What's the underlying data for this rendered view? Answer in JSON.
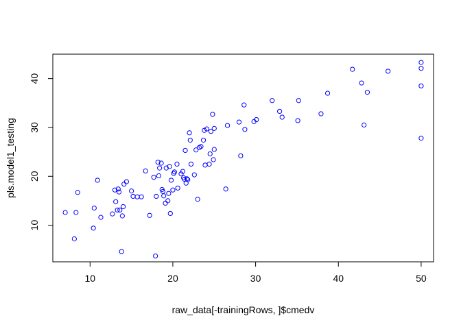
{
  "chart_data": {
    "type": "scatter",
    "title": "",
    "xlabel": "raw_data[-trainingRows, ]$cmedv",
    "ylabel": "pls.model1_testing",
    "xlim": [
      5.5,
      51.5
    ],
    "ylim": [
      2.5,
      45
    ],
    "xticks": [
      10,
      20,
      30,
      40,
      50
    ],
    "yticks": [
      10,
      20,
      30,
      40
    ],
    "point_color": "#0000ff",
    "marker": "open-circle",
    "grid": false,
    "legend": "none",
    "points": [
      [
        7.0,
        12.6
      ],
      [
        8.1,
        7.2
      ],
      [
        8.3,
        12.6
      ],
      [
        8.5,
        16.7
      ],
      [
        10.4,
        9.4
      ],
      [
        10.5,
        13.5
      ],
      [
        10.9,
        19.2
      ],
      [
        11.3,
        11.6
      ],
      [
        12.7,
        12.3
      ],
      [
        13.0,
        17.2
      ],
      [
        13.1,
        14.8
      ],
      [
        13.3,
        13.1
      ],
      [
        13.4,
        17.4
      ],
      [
        13.5,
        16.8
      ],
      [
        13.6,
        13.1
      ],
      [
        13.8,
        4.6
      ],
      [
        13.9,
        11.9
      ],
      [
        14.0,
        13.8
      ],
      [
        14.1,
        18.4
      ],
      [
        14.4,
        18.9
      ],
      [
        15.0,
        17.0
      ],
      [
        15.2,
        15.9
      ],
      [
        15.7,
        15.8
      ],
      [
        16.2,
        15.8
      ],
      [
        16.7,
        21.1
      ],
      [
        17.2,
        12.0
      ],
      [
        17.7,
        19.8
      ],
      [
        17.9,
        3.7
      ],
      [
        18.0,
        15.9
      ],
      [
        18.2,
        22.9
      ],
      [
        18.3,
        20.1
      ],
      [
        18.4,
        21.7
      ],
      [
        18.6,
        22.7
      ],
      [
        18.7,
        17.3
      ],
      [
        18.8,
        16.9
      ],
      [
        18.9,
        16.0
      ],
      [
        19.1,
        14.5
      ],
      [
        19.2,
        21.7
      ],
      [
        19.4,
        15.0
      ],
      [
        19.5,
        16.5
      ],
      [
        19.6,
        22.0
      ],
      [
        19.7,
        12.4
      ],
      [
        19.8,
        19.2
      ],
      [
        20.0,
        17.2
      ],
      [
        20.1,
        20.6
      ],
      [
        20.2,
        20.9
      ],
      [
        20.5,
        22.5
      ],
      [
        20.6,
        17.6
      ],
      [
        21.0,
        20.5
      ],
      [
        21.2,
        21.0
      ],
      [
        21.3,
        19.7
      ],
      [
        21.4,
        19.4
      ],
      [
        21.5,
        25.3
      ],
      [
        21.6,
        18.6
      ],
      [
        21.7,
        19.5
      ],
      [
        21.8,
        19.3
      ],
      [
        22.0,
        28.9
      ],
      [
        22.1,
        27.4
      ],
      [
        22.2,
        22.5
      ],
      [
        22.6,
        20.3
      ],
      [
        22.8,
        25.4
      ],
      [
        23.0,
        15.3
      ],
      [
        23.2,
        25.9
      ],
      [
        23.4,
        26.1
      ],
      [
        23.7,
        27.4
      ],
      [
        23.8,
        29.4
      ],
      [
        23.9,
        22.3
      ],
      [
        24.1,
        29.7
      ],
      [
        24.4,
        22.5
      ],
      [
        24.5,
        24.6
      ],
      [
        24.6,
        29.2
      ],
      [
        24.8,
        32.7
      ],
      [
        24.9,
        23.4
      ],
      [
        25.0,
        25.5
      ],
      [
        25.0,
        29.8
      ],
      [
        26.4,
        17.4
      ],
      [
        26.6,
        30.4
      ],
      [
        28.0,
        31.1
      ],
      [
        28.2,
        24.2
      ],
      [
        28.6,
        34.6
      ],
      [
        28.7,
        29.6
      ],
      [
        29.8,
        31.2
      ],
      [
        30.1,
        31.6
      ],
      [
        32.0,
        35.5
      ],
      [
        32.9,
        33.3
      ],
      [
        33.2,
        32.1
      ],
      [
        35.1,
        31.4
      ],
      [
        35.2,
        35.5
      ],
      [
        37.9,
        32.8
      ],
      [
        38.7,
        37.0
      ],
      [
        41.7,
        41.9
      ],
      [
        42.8,
        39.1
      ],
      [
        43.1,
        30.5
      ],
      [
        43.5,
        37.2
      ],
      [
        46.0,
        41.5
      ],
      [
        50.0,
        43.3
      ],
      [
        50.0,
        42.1
      ],
      [
        50.0,
        38.5
      ],
      [
        50.0,
        27.8
      ]
    ]
  }
}
